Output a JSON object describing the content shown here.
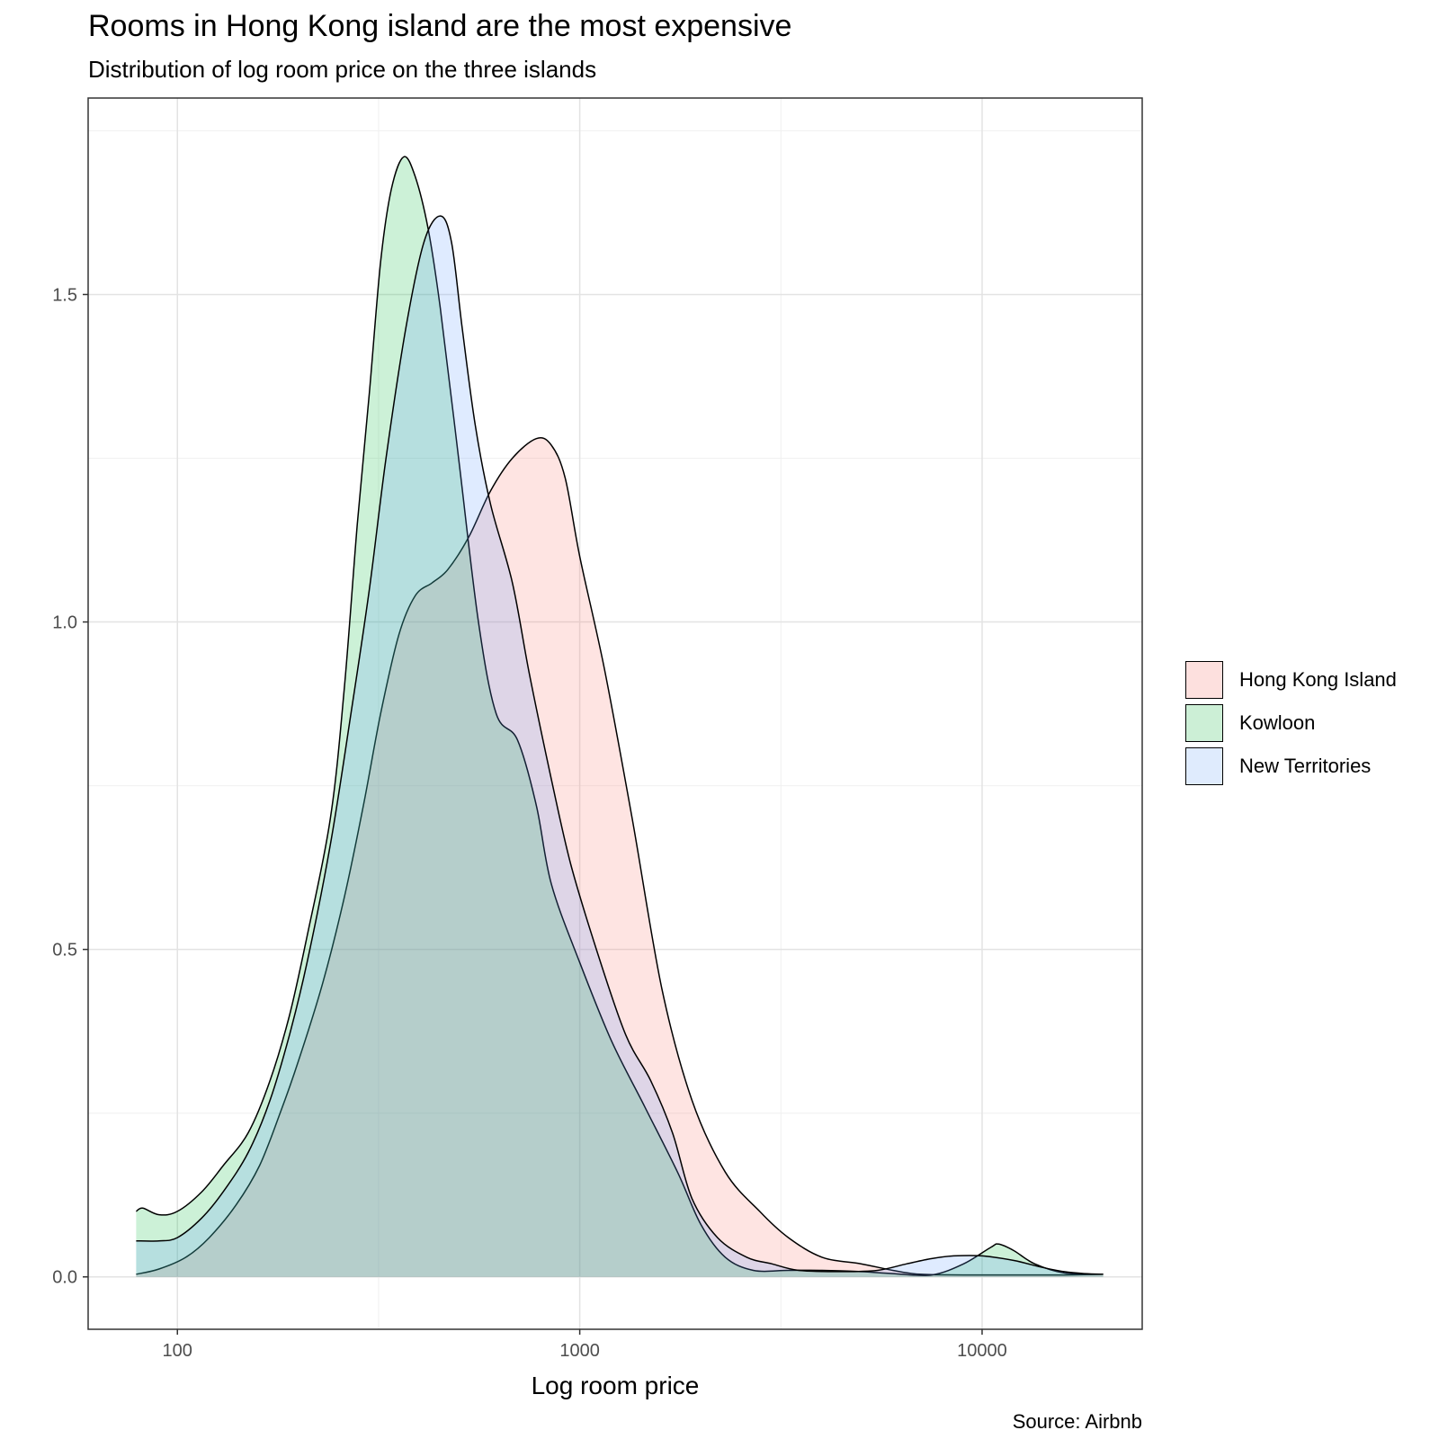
{
  "title": "Rooms in Hong Kong island are the most expensive",
  "subtitle": "Distribution of log room price on the three islands",
  "caption": "Source: Airbnb",
  "chart_data": {
    "type": "area",
    "subtype": "density",
    "xlabel": "Log room price",
    "ylabel": "",
    "x_scale": "log10",
    "xlim": [
      60,
      25000
    ],
    "ylim": [
      -0.08,
      1.8
    ],
    "x_ticks": [
      100,
      1000,
      10000
    ],
    "x_tick_labels": [
      "100",
      "1000",
      "10000"
    ],
    "y_ticks": [
      0,
      0.5,
      1.0,
      1.5
    ],
    "y_tick_labels": [
      "0.0",
      "0.5",
      "1.0",
      "1.5"
    ],
    "grid": true,
    "legend_position": "right",
    "series": [
      {
        "name": "Hong Kong Island",
        "color": "#F8766D",
        "points": [
          [
            79,
            0.004
          ],
          [
            90,
            0.012
          ],
          [
            105,
            0.03
          ],
          [
            120,
            0.06
          ],
          [
            140,
            0.11
          ],
          [
            160,
            0.17
          ],
          [
            180,
            0.25
          ],
          [
            200,
            0.33
          ],
          [
            230,
            0.45
          ],
          [
            260,
            0.58
          ],
          [
            290,
            0.72
          ],
          [
            320,
            0.86
          ],
          [
            355,
            0.98
          ],
          [
            390,
            1.04
          ],
          [
            430,
            1.06
          ],
          [
            470,
            1.08
          ],
          [
            530,
            1.13
          ],
          [
            600,
            1.2
          ],
          [
            680,
            1.25
          ],
          [
            780,
            1.28
          ],
          [
            850,
            1.27
          ],
          [
            920,
            1.22
          ],
          [
            1000,
            1.1
          ],
          [
            1150,
            0.93
          ],
          [
            1350,
            0.7
          ],
          [
            1600,
            0.44
          ],
          [
            1900,
            0.27
          ],
          [
            2300,
            0.16
          ],
          [
            2800,
            0.1
          ],
          [
            3300,
            0.06
          ],
          [
            4000,
            0.03
          ],
          [
            5000,
            0.02
          ],
          [
            6000,
            0.01
          ],
          [
            7000,
            0.004
          ],
          [
            9000,
            0.003
          ],
          [
            12000,
            0.003
          ],
          [
            16000,
            0.003
          ],
          [
            20000,
            0.004
          ]
        ]
      },
      {
        "name": "Kowloon",
        "color": "#00BA38",
        "points": [
          [
            79,
            0.1
          ],
          [
            82,
            0.105
          ],
          [
            90,
            0.095
          ],
          [
            100,
            0.1
          ],
          [
            115,
            0.13
          ],
          [
            130,
            0.17
          ],
          [
            150,
            0.22
          ],
          [
            170,
            0.3
          ],
          [
            190,
            0.4
          ],
          [
            210,
            0.52
          ],
          [
            240,
            0.7
          ],
          [
            260,
            0.9
          ],
          [
            280,
            1.15
          ],
          [
            300,
            1.35
          ],
          [
            320,
            1.55
          ],
          [
            340,
            1.66
          ],
          [
            365,
            1.71
          ],
          [
            390,
            1.68
          ],
          [
            420,
            1.6
          ],
          [
            450,
            1.48
          ],
          [
            500,
            1.25
          ],
          [
            560,
            1.0
          ],
          [
            620,
            0.86
          ],
          [
            700,
            0.82
          ],
          [
            780,
            0.72
          ],
          [
            850,
            0.6
          ],
          [
            1000,
            0.48
          ],
          [
            1200,
            0.36
          ],
          [
            1450,
            0.26
          ],
          [
            1750,
            0.16
          ],
          [
            2000,
            0.08
          ],
          [
            2300,
            0.03
          ],
          [
            2700,
            0.01
          ],
          [
            3300,
            0.01
          ],
          [
            4000,
            0.01
          ],
          [
            5000,
            0.008
          ],
          [
            6000,
            0.005
          ],
          [
            7500,
            0.003
          ],
          [
            9000,
            0.02
          ],
          [
            10500,
            0.045
          ],
          [
            11000,
            0.05
          ],
          [
            12000,
            0.04
          ],
          [
            13500,
            0.02
          ],
          [
            16000,
            0.006
          ],
          [
            20000,
            0.004
          ]
        ]
      },
      {
        "name": "New Territories",
        "color": "#619CFF",
        "points": [
          [
            79,
            0.055
          ],
          [
            90,
            0.055
          ],
          [
            100,
            0.06
          ],
          [
            115,
            0.09
          ],
          [
            130,
            0.13
          ],
          [
            150,
            0.19
          ],
          [
            170,
            0.27
          ],
          [
            190,
            0.37
          ],
          [
            210,
            0.48
          ],
          [
            240,
            0.66
          ],
          [
            270,
            0.86
          ],
          [
            300,
            1.05
          ],
          [
            330,
            1.25
          ],
          [
            370,
            1.45
          ],
          [
            410,
            1.58
          ],
          [
            450,
            1.62
          ],
          [
            480,
            1.58
          ],
          [
            510,
            1.45
          ],
          [
            550,
            1.3
          ],
          [
            600,
            1.18
          ],
          [
            680,
            1.06
          ],
          [
            750,
            0.92
          ],
          [
            850,
            0.76
          ],
          [
            950,
            0.63
          ],
          [
            1100,
            0.5
          ],
          [
            1300,
            0.37
          ],
          [
            1500,
            0.3
          ],
          [
            1700,
            0.22
          ],
          [
            1900,
            0.12
          ],
          [
            2200,
            0.06
          ],
          [
            2600,
            0.03
          ],
          [
            3000,
            0.02
          ],
          [
            3500,
            0.01
          ],
          [
            4500,
            0.008
          ],
          [
            5500,
            0.01
          ],
          [
            6500,
            0.02
          ],
          [
            7500,
            0.028
          ],
          [
            8500,
            0.032
          ],
          [
            10000,
            0.032
          ],
          [
            12000,
            0.025
          ],
          [
            14000,
            0.015
          ],
          [
            16000,
            0.008
          ],
          [
            18000,
            0.005
          ],
          [
            20000,
            0.004
          ]
        ]
      }
    ]
  },
  "legend": {
    "items": [
      {
        "label": "Hong Kong Island",
        "fill": "#FDE0DE"
      },
      {
        "label": "Kowloon",
        "fill": "#CCEFD6"
      },
      {
        "label": "New Territories",
        "fill": "#DFEBFD"
      }
    ]
  }
}
